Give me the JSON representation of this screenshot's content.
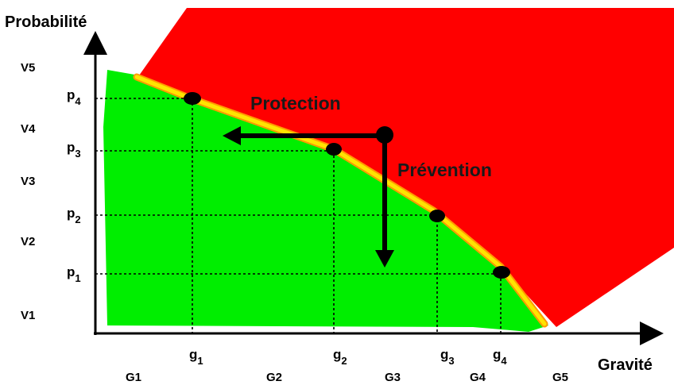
{
  "axes": {
    "y_title": "Probabilité",
    "x_title": "Gravité"
  },
  "probability_levels": [
    "V5",
    "V4",
    "V3",
    "V2",
    "V1"
  ],
  "gravity_levels": [
    "G1",
    "G2",
    "G3",
    "G4",
    "G5"
  ],
  "probability_points": [
    {
      "base": "p",
      "sub": "4"
    },
    {
      "base": "p",
      "sub": "3"
    },
    {
      "base": "p",
      "sub": "2"
    },
    {
      "base": "p",
      "sub": "1"
    }
  ],
  "gravity_points": [
    {
      "base": "g",
      "sub": "1"
    },
    {
      "base": "g",
      "sub": "2"
    },
    {
      "base": "g",
      "sub": "3"
    },
    {
      "base": "g",
      "sub": "4"
    }
  ],
  "actions": {
    "protection": "Protection",
    "prevention": "Prévention"
  },
  "colors": {
    "acceptable_zone": "#00ee00",
    "unacceptable_zone": "#ff0000",
    "limit_curve": "#ffe400",
    "limit_curve_edge": "#ff9a00",
    "axes": "#000000"
  },
  "icons": {
    "arrow_protection": "arrow-left-icon",
    "arrow_prevention": "arrow-down-icon"
  }
}
